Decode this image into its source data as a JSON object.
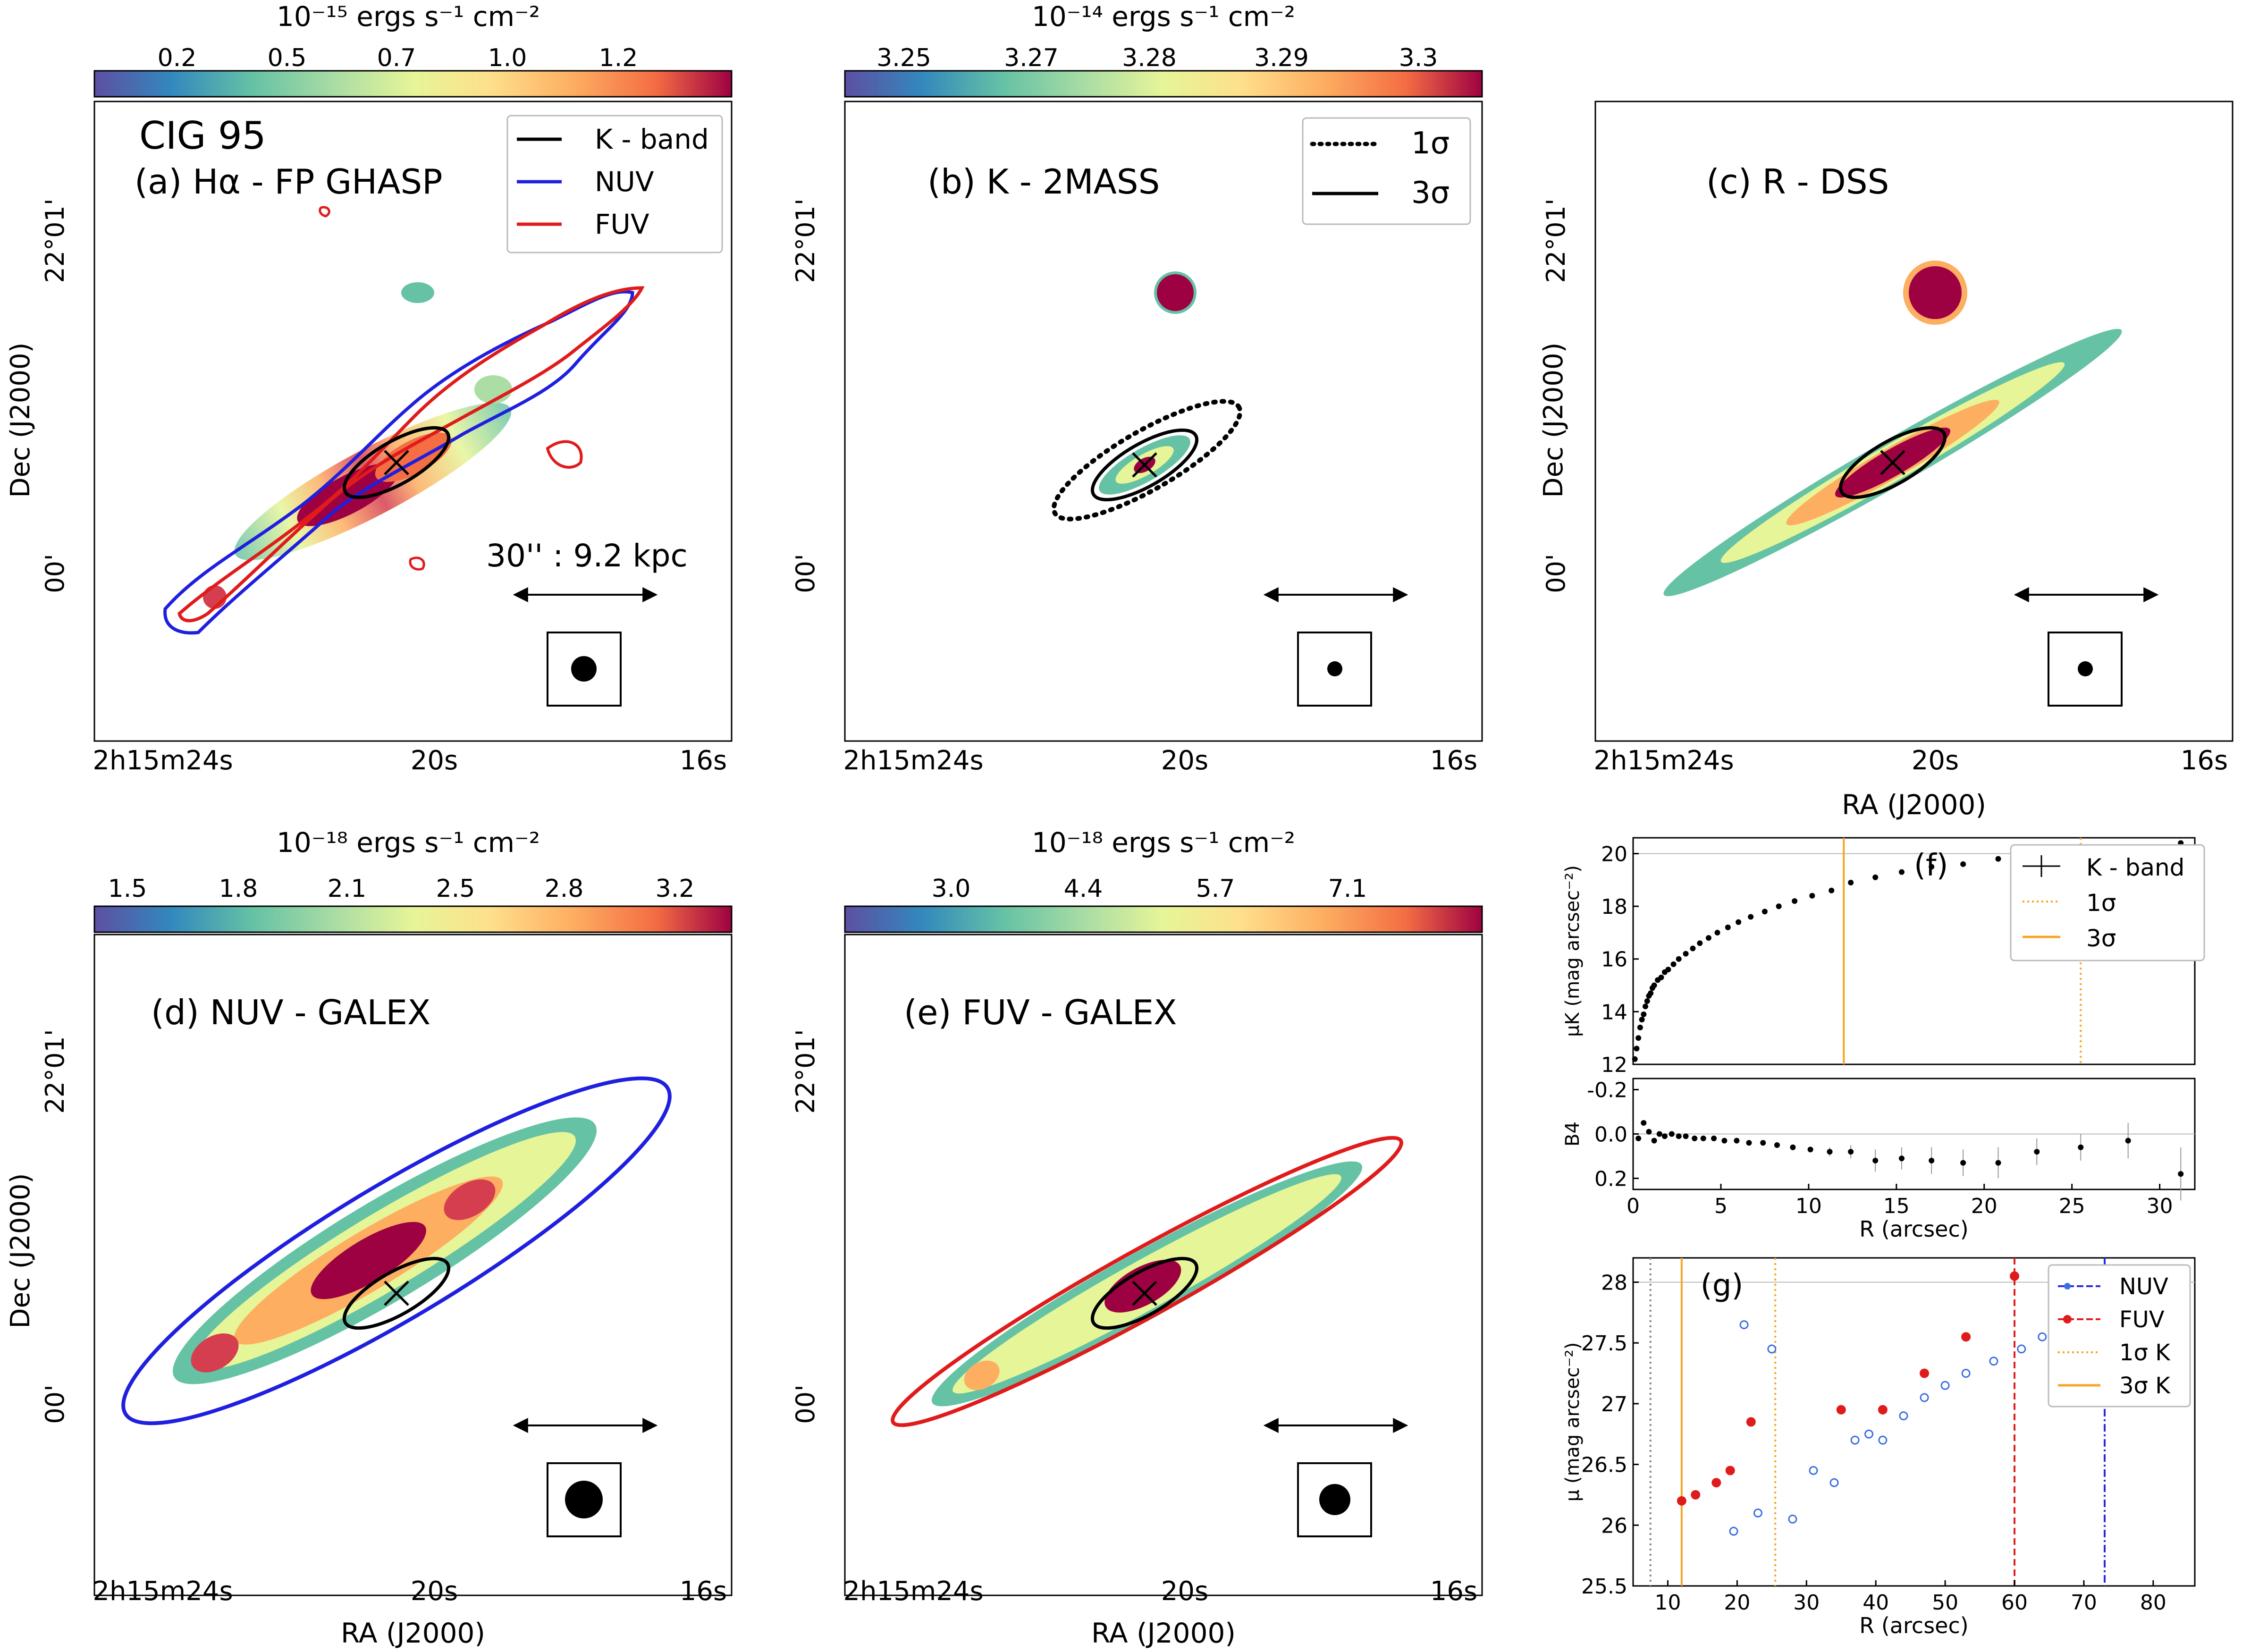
{
  "panels": {
    "a": {
      "title": "(a) Hα - FP GHASP",
      "galaxy": "CIG 95",
      "scalebar_label": "30'' : 9.2 kpc",
      "colorbar_unit": "10⁻¹⁵ ergs s⁻¹ cm⁻²",
      "colorbar_ticks": [
        "0.2",
        "0.5",
        "0.7",
        "1.0",
        "1.2"
      ],
      "legend": [
        {
          "label": "K - band",
          "color": "#000000"
        },
        {
          "label": "NUV",
          "color": "#1f1fdf"
        },
        {
          "label": "FUV",
          "color": "#e01b1b"
        }
      ]
    },
    "b": {
      "title": "(b) K - 2MASS",
      "colorbar_unit": "10⁻¹⁴ ergs s⁻¹ cm⁻²",
      "colorbar_ticks": [
        "3.25",
        "3.27",
        "3.28",
        "3.29",
        "3.3"
      ],
      "legend": [
        {
          "label": "1σ",
          "style": "dotted"
        },
        {
          "label": "3σ",
          "style": "solid"
        }
      ]
    },
    "c": {
      "title": "(c) R - DSS"
    },
    "d": {
      "title": "(d) NUV - GALEX",
      "colorbar_unit": "10⁻¹⁸ ergs s⁻¹ cm⁻²",
      "colorbar_ticks": [
        "1.5",
        "1.8",
        "2.1",
        "2.5",
        "2.8",
        "3.2"
      ]
    },
    "e": {
      "title": "(e) FUV - GALEX",
      "colorbar_unit": "10⁻¹⁸ ergs s⁻¹ cm⁻²",
      "colorbar_ticks": [
        "3.0",
        "4.4",
        "5.7",
        "7.1"
      ]
    }
  },
  "axes": {
    "dec_label": "Dec (J2000)",
    "ra_label": "RA (J2000)",
    "dec_ticks": [
      "22°01'",
      "00'"
    ],
    "ra_ticks": [
      "2h15m24s",
      "20s",
      "16s"
    ]
  },
  "chart_data": [
    {
      "type": "scatter",
      "label": "(f)",
      "xlabel": "",
      "ylabel": "μK (mag arcsec⁻²)",
      "xlim": [
        0,
        32
      ],
      "ylim": [
        20.6,
        12
      ],
      "yticks": [
        12,
        14,
        16,
        18,
        20
      ],
      "vlines": [
        {
          "x": 12,
          "style": "solid",
          "color": "#f5a623"
        },
        {
          "x": 25.5,
          "style": "dotted",
          "color": "#f5a623"
        }
      ],
      "hline": 20,
      "legend": [
        "K - band",
        "1σ",
        "3σ"
      ],
      "series": [
        {
          "name": "K - band",
          "x": [
            0.1,
            0.2,
            0.3,
            0.4,
            0.5,
            0.6,
            0.7,
            0.8,
            0.9,
            1.0,
            1.1,
            1.2,
            1.4,
            1.6,
            1.8,
            2.0,
            2.3,
            2.6,
            3.0,
            3.4,
            3.8,
            4.3,
            4.8,
            5.4,
            6.0,
            6.7,
            7.5,
            8.3,
            9.2,
            10.2,
            11.3,
            12.4,
            13.8,
            15.3,
            17.0,
            18.8,
            20.8,
            23.0,
            25.5,
            28.2,
            31.2
          ],
          "y": [
            12.2,
            12.6,
            13.0,
            13.4,
            13.7,
            13.9,
            14.2,
            14.4,
            14.6,
            14.7,
            14.9,
            15.0,
            15.2,
            15.3,
            15.5,
            15.6,
            15.8,
            16.0,
            16.2,
            16.4,
            16.6,
            16.8,
            17.0,
            17.2,
            17.4,
            17.6,
            17.8,
            18.0,
            18.2,
            18.4,
            18.6,
            18.9,
            19.1,
            19.3,
            19.5,
            19.6,
            19.8,
            19.9,
            20.0,
            20.2,
            20.4
          ]
        }
      ]
    },
    {
      "type": "scatter",
      "label": "",
      "xlabel": "R (arcsec)",
      "ylabel": "B4",
      "xlim": [
        0,
        32
      ],
      "ylim": [
        -0.25,
        0.25
      ],
      "yticks": [
        -0.2,
        0.0,
        0.2
      ],
      "xticks": [
        0,
        5,
        10,
        15,
        20,
        25,
        30
      ],
      "hline": 0,
      "series": [
        {
          "name": "B4",
          "x": [
            0.3,
            0.6,
            0.9,
            1.2,
            1.5,
            1.8,
            2.2,
            2.6,
            3.0,
            3.5,
            4.0,
            4.6,
            5.2,
            5.9,
            6.6,
            7.4,
            8.2,
            9.1,
            10.1,
            11.2,
            12.4,
            13.8,
            15.3,
            17.0,
            18.8,
            20.8,
            23.0,
            25.5,
            28.2,
            31.2
          ],
          "y": [
            0.02,
            -0.05,
            -0.01,
            0.03,
            0.0,
            0.01,
            0.0,
            0.01,
            0.01,
            0.02,
            0.02,
            0.02,
            0.03,
            0.03,
            0.04,
            0.04,
            0.05,
            0.06,
            0.07,
            0.08,
            0.08,
            0.12,
            0.11,
            0.12,
            0.13,
            0.13,
            0.08,
            0.06,
            0.03,
            0.18
          ],
          "err": [
            0,
            0,
            0,
            0,
            0,
            0,
            0,
            0,
            0,
            0,
            0,
            0,
            0,
            0,
            0,
            0,
            0.01,
            0.01,
            0.01,
            0.02,
            0.03,
            0.05,
            0.05,
            0.06,
            0.06,
            0.07,
            0.06,
            0.06,
            0.08,
            0.12
          ]
        }
      ]
    },
    {
      "type": "scatter",
      "label": "(g)",
      "xlabel": "R (arcsec)",
      "ylabel": "μ (mag arcsec⁻²)",
      "xlim": [
        5,
        86
      ],
      "ylim": [
        28.2,
        25.5
      ],
      "yticks": [
        25.5,
        26.0,
        26.5,
        27.0,
        27.5,
        28.0
      ],
      "xticks": [
        10,
        20,
        30,
        40,
        50,
        60,
        70,
        80
      ],
      "hline": 28.0,
      "vlines": [
        {
          "x": 7.5,
          "style": "dotted",
          "color": "#888888"
        },
        {
          "x": 12,
          "style": "solid",
          "color": "#f5a623"
        },
        {
          "x": 25.5,
          "style": "dotted",
          "color": "#f5a623"
        },
        {
          "x": 60,
          "style": "dashed",
          "color": "#e01b1b"
        },
        {
          "x": 73,
          "style": "dashdot",
          "color": "#2a2ae0"
        }
      ],
      "legend": [
        "NUV",
        "FUV",
        "1σ K",
        "3σ K"
      ],
      "series": [
        {
          "name": "NUV",
          "color": "#3b6fe0",
          "x": [
            19.5,
            21,
            23,
            25,
            28,
            31,
            34,
            37,
            39,
            41,
            44,
            47,
            50,
            53,
            57,
            61,
            64,
            68,
            71,
            75,
            78,
            82
          ],
          "y": [
            25.95,
            27.65,
            26.1,
            27.45,
            26.05,
            26.45,
            26.35,
            26.7,
            26.75,
            26.7,
            26.9,
            27.05,
            27.15,
            27.25,
            27.35,
            27.45,
            27.55,
            27.55,
            27.7,
            27.5,
            27.2,
            27.65
          ]
        },
        {
          "name": "FUV",
          "color": "#e01b1b",
          "x": [
            12,
            14,
            17,
            19,
            22,
            35,
            41,
            47,
            53,
            60
          ],
          "y": [
            26.2,
            26.25,
            26.35,
            26.45,
            26.85,
            26.95,
            26.95,
            27.25,
            27.55,
            28.05
          ]
        }
      ]
    }
  ],
  "colors": {
    "nuv": "#1f1fdf",
    "fuv": "#e01b1b",
    "sigma": "#f5a623"
  }
}
